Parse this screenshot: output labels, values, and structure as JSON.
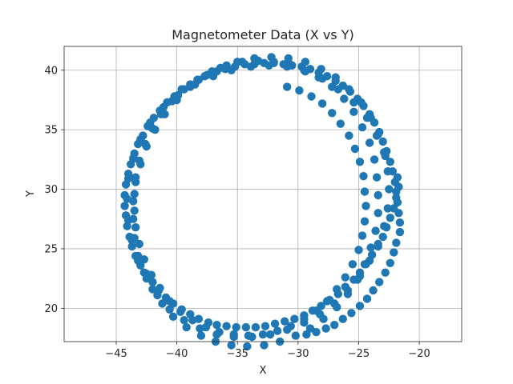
{
  "chart_data": {
    "type": "scatter",
    "title": "Magnetometer Data (X vs Y)",
    "xlabel": "X",
    "ylabel": "Y",
    "xlim": [
      -49.3,
      -16.5
    ],
    "ylim": [
      17.2,
      42.0
    ],
    "xticks": [
      -45,
      -40,
      -35,
      -30,
      -25,
      -20
    ],
    "yticks": [
      20,
      25,
      30,
      35,
      40
    ],
    "xtick_labels": [
      "−45",
      "−40",
      "−35",
      "−30",
      "−25",
      "−20"
    ],
    "ytick_labels": [
      "20",
      "25",
      "30",
      "35",
      "40"
    ],
    "grid": true,
    "marker_color": "#1f77b4",
    "series": [
      {
        "points": [
          [
            -21.6,
            27.2
          ],
          [
            -21.7,
            28.0
          ],
          [
            -21.8,
            28.9
          ],
          [
            -21.9,
            29.8
          ],
          [
            -22.0,
            30.6
          ],
          [
            -22.2,
            31.5
          ],
          [
            -22.4,
            32.3
          ],
          [
            -22.7,
            33.2
          ],
          [
            -23.0,
            34.0
          ],
          [
            -23.3,
            34.8
          ],
          [
            -23.7,
            35.6
          ],
          [
            -24.1,
            36.3
          ],
          [
            -24.6,
            37.0
          ],
          [
            -25.1,
            37.6
          ],
          [
            -25.7,
            38.2
          ],
          [
            -26.3,
            38.7
          ],
          [
            -26.9,
            39.1
          ],
          [
            -27.6,
            39.5
          ],
          [
            -28.3,
            39.8
          ],
          [
            -29.0,
            40.1
          ],
          [
            -29.7,
            40.3
          ],
          [
            -30.5,
            40.4
          ],
          [
            -31.2,
            40.5
          ],
          [
            -32.0,
            40.6
          ],
          [
            -32.8,
            40.6
          ],
          [
            -33.6,
            40.5
          ],
          [
            -34.4,
            40.5
          ],
          [
            -35.2,
            40.3
          ],
          [
            -36.0,
            40.1
          ],
          [
            -36.7,
            39.9
          ],
          [
            -37.5,
            39.6
          ],
          [
            -38.2,
            39.2
          ],
          [
            -38.9,
            38.8
          ],
          [
            -39.6,
            38.4
          ],
          [
            -40.2,
            37.8
          ],
          [
            -40.8,
            37.3
          ],
          [
            -41.4,
            36.6
          ],
          [
            -41.9,
            36.0
          ],
          [
            -42.4,
            35.3
          ],
          [
            -42.8,
            34.5
          ],
          [
            -43.2,
            33.8
          ],
          [
            -43.5,
            33.0
          ],
          [
            -43.8,
            32.1
          ],
          [
            -44.0,
            31.3
          ],
          [
            -44.2,
            30.4
          ],
          [
            -44.3,
            29.5
          ],
          [
            -44.3,
            28.6
          ],
          [
            -44.2,
            27.8
          ],
          [
            -44.1,
            26.9
          ],
          [
            -43.9,
            26.0
          ],
          [
            -43.7,
            25.2
          ],
          [
            -43.4,
            24.4
          ],
          [
            -43.0,
            23.6
          ],
          [
            -42.5,
            22.9
          ],
          [
            -42.0,
            22.2
          ],
          [
            -41.5,
            21.5
          ],
          [
            -40.9,
            20.9
          ],
          [
            -40.3,
            20.4
          ],
          [
            -39.6,
            19.9
          ],
          [
            -38.9,
            19.5
          ],
          [
            -38.2,
            19.1
          ],
          [
            -37.4,
            18.8
          ],
          [
            -36.7,
            18.6
          ],
          [
            -35.9,
            18.5
          ],
          [
            -35.1,
            18.4
          ],
          [
            -34.3,
            18.4
          ],
          [
            -33.5,
            18.4
          ],
          [
            -32.7,
            18.5
          ],
          [
            -31.9,
            18.7
          ],
          [
            -31.1,
            18.9
          ],
          [
            -30.3,
            19.1
          ],
          [
            -29.5,
            19.4
          ],
          [
            -28.8,
            19.8
          ],
          [
            -28.1,
            20.2
          ],
          [
            -27.4,
            20.7
          ],
          [
            -26.7,
            21.2
          ],
          [
            -26.1,
            21.8
          ],
          [
            -25.4,
            22.4
          ],
          [
            -24.9,
            23.0
          ],
          [
            -24.4,
            23.7
          ],
          [
            -23.9,
            24.5
          ],
          [
            -23.4,
            25.2
          ],
          [
            -23.0,
            26.0
          ],
          [
            -22.7,
            26.8
          ],
          [
            -22.4,
            27.6
          ],
          [
            -22.1,
            28.4
          ],
          [
            -21.9,
            29.3
          ],
          [
            -21.7,
            30.2
          ],
          [
            -21.8,
            31.0
          ],
          [
            -21.6,
            26.4
          ],
          [
            -21.9,
            25.5
          ],
          [
            -22.1,
            24.7
          ],
          [
            -22.4,
            23.8
          ],
          [
            -22.8,
            23.0
          ],
          [
            -23.3,
            22.2
          ],
          [
            -23.8,
            21.5
          ],
          [
            -24.3,
            20.8
          ],
          [
            -24.9,
            20.2
          ],
          [
            -25.6,
            19.6
          ],
          [
            -26.3,
            19.1
          ],
          [
            -27.0,
            18.6
          ],
          [
            -27.7,
            18.3
          ],
          [
            -28.5,
            18.0
          ],
          [
            -29.3,
            17.8
          ],
          [
            -22.8,
            32.8
          ],
          [
            -23.5,
            34.5
          ],
          [
            -24.3,
            36.0
          ],
          [
            -25.4,
            37.3
          ],
          [
            -26.7,
            38.4
          ],
          [
            -28.0,
            39.3
          ],
          [
            -29.4,
            39.9
          ],
          [
            -30.9,
            40.3
          ],
          [
            -32.4,
            40.4
          ],
          [
            -33.9,
            40.3
          ],
          [
            -35.5,
            40.0
          ],
          [
            -37.0,
            39.5
          ],
          [
            -38.5,
            38.8
          ],
          [
            -39.9,
            37.9
          ],
          [
            -41.1,
            36.9
          ],
          [
            -42.2,
            35.6
          ],
          [
            -43.0,
            34.2
          ],
          [
            -43.6,
            32.6
          ],
          [
            -44.0,
            30.9
          ],
          [
            -44.1,
            29.2
          ],
          [
            -44.0,
            27.4
          ],
          [
            -43.7,
            25.7
          ],
          [
            -43.2,
            24.0
          ],
          [
            -42.5,
            22.5
          ],
          [
            -41.6,
            21.1
          ],
          [
            -40.6,
            19.9
          ],
          [
            -39.4,
            19.0
          ],
          [
            -38.1,
            18.3
          ],
          [
            -36.7,
            17.8
          ],
          [
            -35.3,
            17.6
          ],
          [
            -33.8,
            17.6
          ],
          [
            -32.3,
            17.8
          ],
          [
            -30.9,
            18.2
          ],
          [
            -29.5,
            18.8
          ],
          [
            -28.2,
            19.5
          ],
          [
            -27.0,
            20.4
          ],
          [
            -25.9,
            21.5
          ],
          [
            -24.9,
            22.7
          ],
          [
            -24.1,
            24.0
          ],
          [
            -23.4,
            25.4
          ],
          [
            -22.9,
            26.9
          ],
          [
            -22.6,
            28.4
          ],
          [
            -22.5,
            30.0
          ],
          [
            -22.6,
            31.5
          ],
          [
            -22.9,
            33.1
          ],
          [
            -23.4,
            34.6
          ],
          [
            -24.0,
            36.0
          ],
          [
            -24.8,
            37.3
          ],
          [
            -25.8,
            38.4
          ],
          [
            -26.9,
            39.4
          ],
          [
            -28.1,
            40.1
          ],
          [
            -29.4,
            40.7
          ],
          [
            -30.8,
            41.0
          ],
          [
            -32.2,
            41.1
          ],
          [
            -33.6,
            41.0
          ],
          [
            -35.0,
            40.7
          ],
          [
            -36.4,
            40.2
          ],
          [
            -37.7,
            39.5
          ],
          [
            -38.9,
            38.6
          ],
          [
            -40.0,
            37.5
          ],
          [
            -41.0,
            36.3
          ],
          [
            -41.8,
            35.0
          ],
          [
            -42.5,
            33.6
          ],
          [
            -43.0,
            32.1
          ],
          [
            -43.4,
            30.6
          ],
          [
            -43.6,
            29.0
          ],
          [
            -43.6,
            27.5
          ],
          [
            -43.5,
            25.9
          ],
          [
            -43.2,
            24.4
          ],
          [
            -42.7,
            23.0
          ],
          [
            -42.0,
            21.6
          ],
          [
            -41.2,
            20.4
          ],
          [
            -40.3,
            19.3
          ],
          [
            -39.2,
            18.4
          ],
          [
            -38.0,
            17.7
          ],
          [
            -36.8,
            17.2
          ],
          [
            -35.5,
            16.9
          ],
          [
            -34.2,
            16.8
          ],
          [
            -32.8,
            16.9
          ],
          [
            -31.5,
            17.2
          ],
          [
            -30.2,
            17.7
          ],
          [
            -29.0,
            18.3
          ],
          [
            -27.9,
            19.1
          ],
          [
            -26.8,
            20.1
          ],
          [
            -25.9,
            21.2
          ],
          [
            -25.1,
            22.4
          ],
          [
            -24.5,
            23.7
          ],
          [
            -24.0,
            25.1
          ],
          [
            -23.6,
            26.5
          ],
          [
            -23.4,
            28.0
          ],
          [
            -23.4,
            29.5
          ],
          [
            -23.5,
            31.0
          ],
          [
            -23.7,
            32.5
          ],
          [
            -24.1,
            33.9
          ],
          [
            -24.7,
            35.2
          ],
          [
            -25.4,
            36.5
          ],
          [
            -26.2,
            37.6
          ],
          [
            -27.2,
            38.6
          ],
          [
            -28.3,
            39.4
          ],
          [
            -29.5,
            40.0
          ],
          [
            -30.7,
            40.5
          ],
          [
            -32.0,
            40.7
          ],
          [
            -33.3,
            40.8
          ],
          [
            -34.6,
            40.7
          ],
          [
            -35.9,
            40.4
          ],
          [
            -37.1,
            39.9
          ],
          [
            -38.3,
            39.2
          ],
          [
            -39.4,
            38.4
          ],
          [
            -40.4,
            37.4
          ],
          [
            -41.3,
            36.3
          ],
          [
            -42.0,
            35.1
          ],
          [
            -42.6,
            33.8
          ],
          [
            -43.1,
            32.4
          ],
          [
            -43.4,
            31.0
          ],
          [
            -43.5,
            29.6
          ],
          [
            -43.5,
            28.2
          ],
          [
            -43.4,
            26.8
          ],
          [
            -43.1,
            25.4
          ],
          [
            -42.7,
            24.1
          ],
          [
            -42.1,
            22.8
          ],
          [
            -41.4,
            21.7
          ],
          [
            -40.6,
            20.6
          ],
          [
            -39.7,
            19.7
          ],
          [
            -38.7,
            19.0
          ],
          [
            -37.6,
            18.4
          ],
          [
            -36.5,
            18.0
          ],
          [
            -35.3,
            17.8
          ],
          [
            -34.1,
            17.7
          ],
          [
            -32.9,
            17.8
          ],
          [
            -31.7,
            18.1
          ],
          [
            -30.6,
            18.5
          ],
          [
            -29.5,
            19.1
          ],
          [
            -28.5,
            19.8
          ],
          [
            -27.6,
            20.6
          ],
          [
            -26.8,
            21.6
          ],
          [
            -26.1,
            22.6
          ],
          [
            -25.5,
            23.7
          ],
          [
            -25.0,
            24.9
          ],
          [
            -24.7,
            26.1
          ],
          [
            -24.5,
            27.3
          ],
          [
            -24.4,
            28.6
          ],
          [
            -24.5,
            29.8
          ],
          [
            -24.6,
            31.1
          ],
          [
            -24.9,
            32.3
          ],
          [
            -25.3,
            33.4
          ],
          [
            -25.8,
            34.5
          ],
          [
            -26.5,
            35.5
          ],
          [
            -27.2,
            36.4
          ],
          [
            -28.0,
            37.2
          ],
          [
            -28.9,
            37.8
          ],
          [
            -29.9,
            38.3
          ],
          [
            -30.9,
            38.6
          ]
        ]
      }
    ]
  }
}
